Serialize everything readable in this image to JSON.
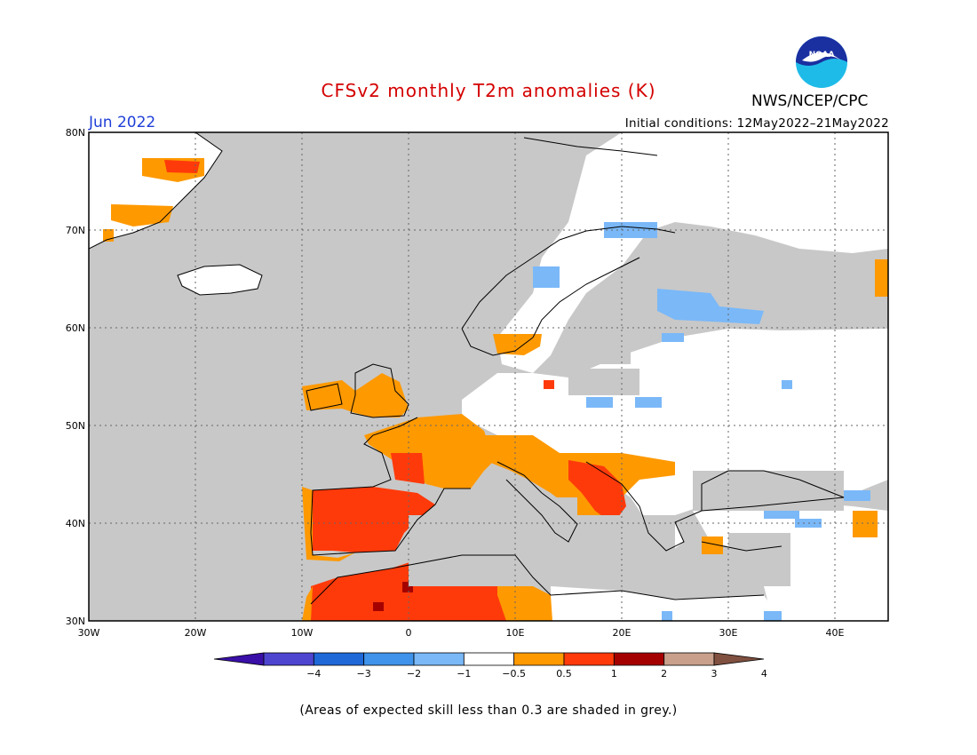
{
  "title": "CFSv2 monthly T2m anomalies (K)",
  "agency": "NWS/NCEP/CPC",
  "logo_text": "NOAA",
  "period": "Jun 2022",
  "initial_conditions": "Initial conditions: 12May2022–21May2022",
  "footnote": "(Areas of expected skill less than 0.3 are shaded in grey.)",
  "map": {
    "lon_range": [
      -30,
      45
    ],
    "lat_range": [
      30,
      80
    ],
    "lon_ticks": [
      "30W",
      "20W",
      "10W",
      "0",
      "10E",
      "20E",
      "30E",
      "40E"
    ],
    "lat_ticks": [
      "30N",
      "40N",
      "50N",
      "60N",
      "70N",
      "80N"
    ],
    "grid": "dotted",
    "land_color": "#ffffff",
    "low_skill_color": "#c8c8c8"
  },
  "colorbar": {
    "labels": [
      "−4",
      "−3",
      "−2",
      "−1",
      "−0.5",
      "0.5",
      "1",
      "2",
      "3",
      "4"
    ],
    "colors": [
      "#3a0fa8",
      "#4d45d0",
      "#1e68d8",
      "#3f93ea",
      "#7ab8f8",
      "#ffffff",
      "#ff9900",
      "#ff3a0a",
      "#a50000",
      "#c8a08c",
      "#805040"
    ]
  }
}
